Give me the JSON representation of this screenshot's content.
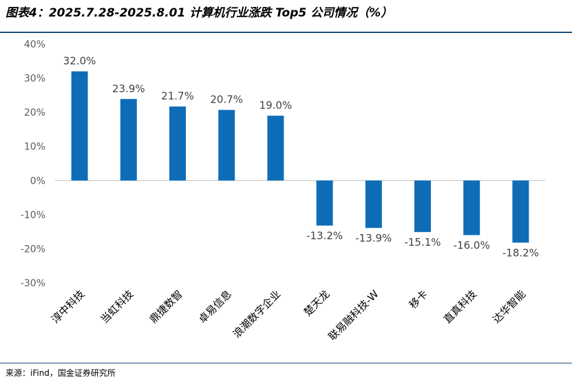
{
  "header": {
    "title": "图表4：2025.7.28-2025.8.01 计算机行业涨跌 Top5 公司情况（%）"
  },
  "footer": {
    "source": "来源：iFind，国金证券研究所"
  },
  "colors": {
    "bar": "#0f6db8",
    "rule": "#1f4e79"
  },
  "chart_data": {
    "type": "bar",
    "categories": [
      "淳中科技",
      "当虹科技",
      "鼎捷数智",
      "卓易信息",
      "浪潮数字企业",
      "楚天龙",
      "联易融科技-W",
      "移卡",
      "直真科技",
      "达华智能"
    ],
    "values": [
      32.0,
      23.9,
      21.7,
      20.7,
      19.0,
      -13.2,
      -13.9,
      -15.1,
      -16.0,
      -18.2
    ],
    "data_labels": [
      "32.0%",
      "23.9%",
      "21.7%",
      "20.7%",
      "19.0%",
      "-13.2%",
      "-13.9%",
      "-15.1%",
      "-16.0%",
      "-18.2%"
    ],
    "ylim": [
      -30,
      40
    ],
    "yticks": [
      40,
      30,
      20,
      10,
      0,
      -10,
      -20,
      -30
    ],
    "ytick_labels": [
      "40%",
      "30%",
      "20%",
      "10%",
      "0%",
      "-10%",
      "-20%",
      "-30%"
    ],
    "grid": false,
    "legend": "none"
  }
}
